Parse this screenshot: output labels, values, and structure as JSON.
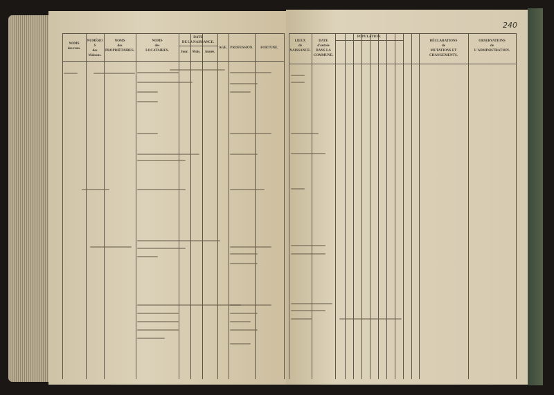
{
  "left_page": {
    "headers": [
      {
        "key": "rues",
        "lines": [
          "NOMS",
          "des rues."
        ]
      },
      {
        "key": "numeros",
        "lines": [
          "NUMÉROS",
          "des Maisons."
        ]
      },
      {
        "key": "proprietaires",
        "lines": [
          "NOMS",
          "des",
          "PROPRIÉTAIRES."
        ]
      },
      {
        "key": "locataires",
        "lines": [
          "NOMS",
          "des",
          "LOCATAIRES."
        ]
      },
      {
        "key": "date",
        "lines": [
          "DATE",
          "DE LA NAISSANCE."
        ]
      },
      {
        "key": "jour",
        "lines": [
          "Jour."
        ]
      },
      {
        "key": "mois",
        "lines": [
          "Mois."
        ]
      },
      {
        "key": "annee",
        "lines": [
          "Année."
        ]
      },
      {
        "key": "age",
        "lines": [
          "AGE."
        ]
      },
      {
        "key": "profession",
        "lines": [
          "PROFESSION."
        ]
      },
      {
        "key": "fortune",
        "lines": [
          "FORTUNE."
        ]
      }
    ]
  },
  "right_page": {
    "page_number": "240",
    "headers": [
      {
        "key": "lieux",
        "lines": [
          "LIEUX",
          "de",
          "NAISSANCE."
        ]
      },
      {
        "key": "date_entree",
        "lines": [
          "DATE",
          "d'entrée",
          "DANS LA COMMUNE."
        ]
      },
      {
        "key": "population",
        "lines": [
          "POPULATION."
        ]
      },
      {
        "key": "declarations",
        "lines": [
          "DÉCLARATIONS",
          "de",
          "MUTATIONS ET CHANGEMENTS."
        ]
      },
      {
        "key": "observations",
        "lines": [
          "OBSERVATIONS",
          "de",
          "L'ADMINISTRATION."
        ]
      }
    ]
  }
}
